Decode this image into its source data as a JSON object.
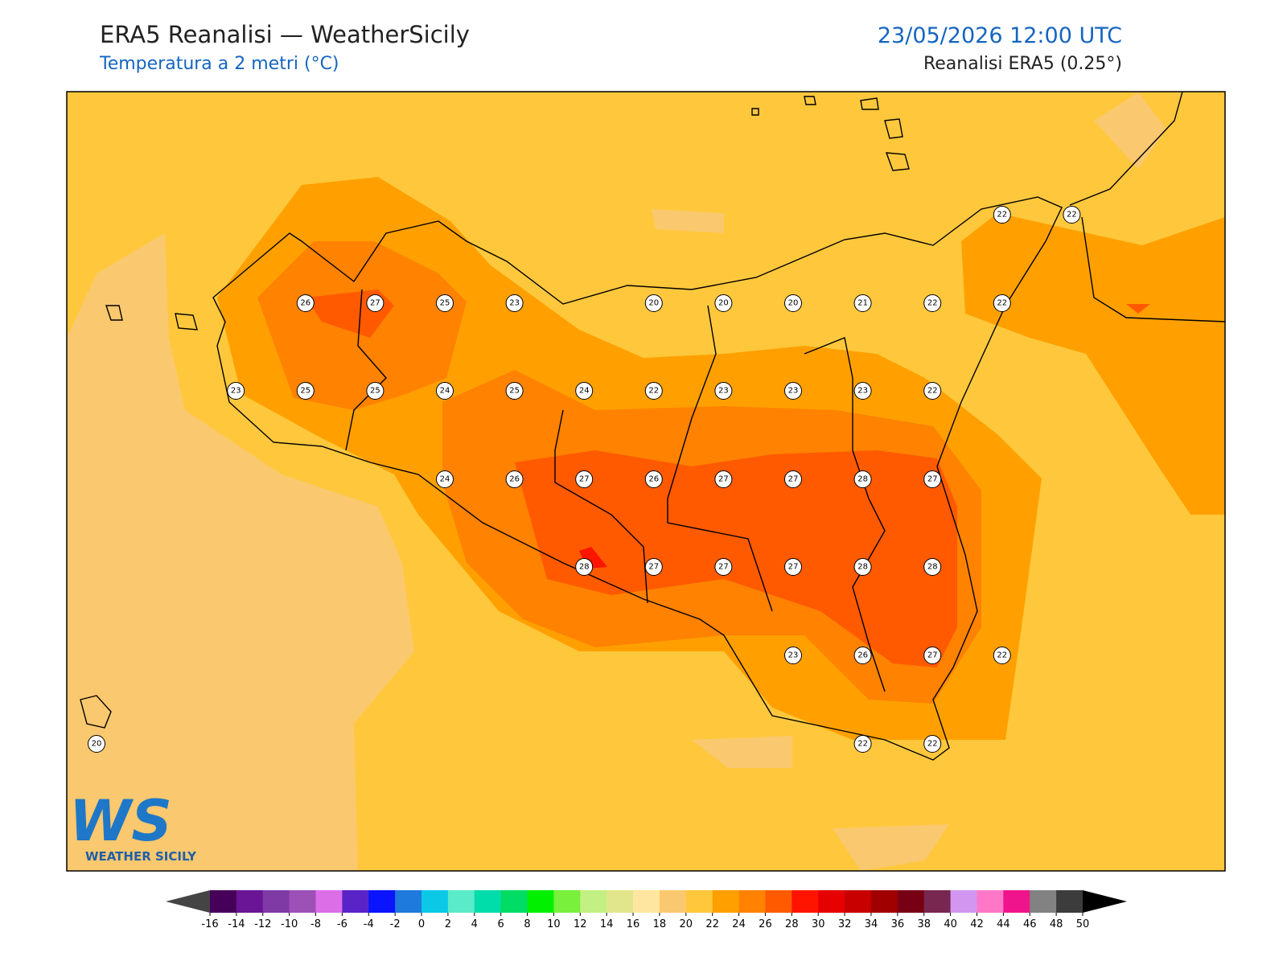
{
  "header": {
    "title": "ERA5 Reanalisi — WeatherSicily",
    "subtitle": "Temperatura a 2 metri (°C)",
    "datetime": "23/05/2026 12:00 UTC",
    "source": "Reanalisi ERA5 (0.25°)"
  },
  "stations": [
    [
      null,
      null,
      null,
      null,
      null,
      null,
      null,
      null,
      null,
      null,
      null,
      null,
      null,
      22,
      22
    ],
    [
      null,
      null,
      null,
      26,
      27,
      25,
      23,
      null,
      20,
      20,
      20,
      21,
      22,
      22,
      null
    ],
    [
      null,
      null,
      23,
      25,
      25,
      24,
      25,
      24,
      22,
      23,
      23,
      23,
      22,
      null,
      null
    ],
    [
      null,
      null,
      null,
      null,
      null,
      24,
      26,
      27,
      26,
      27,
      27,
      28,
      27,
      null,
      null
    ],
    [
      null,
      null,
      null,
      null,
      null,
      null,
      null,
      28,
      27,
      27,
      27,
      28,
      28,
      null,
      null
    ],
    [
      null,
      null,
      null,
      null,
      null,
      null,
      null,
      null,
      null,
      null,
      23,
      26,
      27,
      22,
      null
    ],
    [
      20,
      null,
      null,
      null,
      null,
      null,
      null,
      null,
      null,
      null,
      null,
      22,
      22,
      null,
      null
    ]
  ],
  "colorbar": {
    "ticks": [
      -16,
      -14,
      -12,
      -10,
      -8,
      -6,
      -4,
      -2,
      0,
      2,
      4,
      6,
      8,
      10,
      12,
      14,
      16,
      18,
      20,
      22,
      24,
      26,
      28,
      30,
      32,
      34,
      36,
      38,
      40,
      42,
      44,
      46,
      48,
      50
    ],
    "colors": [
      "#46005a",
      "#6a1596",
      "#7f3aa6",
      "#9d50b5",
      "#dc6ee8",
      "#5a23c8",
      "#0a14ff",
      "#1e7adc",
      "#0ac8e6",
      "#5aebc8",
      "#00dcaa",
      "#00dc64",
      "#00f000",
      "#78f03c",
      "#c3f082",
      "#e1e68c",
      "#ffe6a0",
      "#fac86e",
      "#ffc83c",
      "#ffa000",
      "#ff8200",
      "#ff5a00",
      "#ff1400",
      "#e60000",
      "#c80000",
      "#a00000",
      "#780014",
      "#782850",
      "#d296f0",
      "#ff78c8",
      "#f0148c",
      "#828282",
      "#3c3c3c"
    ],
    "under_color": "#444444",
    "over_color": "#000000"
  },
  "logo": {
    "text": "WEATHER SICILY"
  }
}
